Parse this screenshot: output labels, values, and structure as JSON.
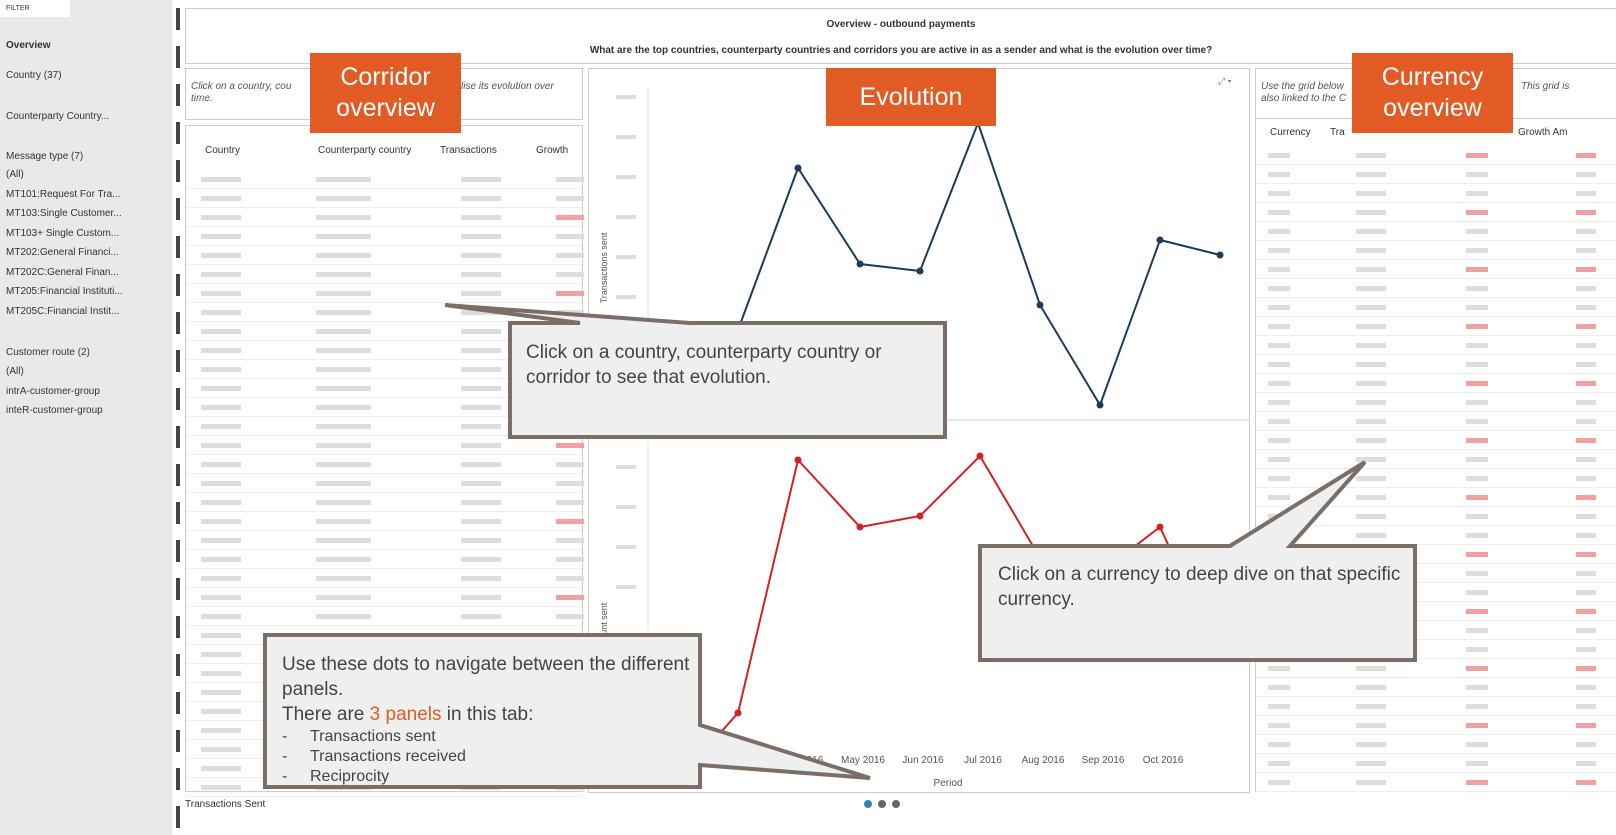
{
  "sidebar": {
    "title": "FILTER",
    "view": "Overview",
    "country": "Country (37)",
    "counterparty": "Counterparty Country...",
    "message_type": {
      "label": "Message type (7)",
      "options": [
        "(All)",
        "MT101:Request For Tra...",
        "MT103:Single Customer...",
        "MT103+ Single Custom...",
        "MT202:General Financi...",
        "MT202C:General Finan...",
        "MT205:Financial Instituti...",
        "MT205C:Financial Instit..."
      ]
    },
    "customer_route": {
      "label": "Customer route (2)",
      "options": [
        "(All)",
        "intrA-customer-group",
        "inteR-customer-group"
      ]
    }
  },
  "header": {
    "title": "Overview - outbound payments",
    "question": "What are the top countries, counterparty countries and corridors you are active in as a sender and what is the evolution over time?"
  },
  "corridor": {
    "note": [
      "Click on a country, cou",
      "lise its evolution over",
      "time."
    ],
    "columns": [
      "Country",
      "Counterparty country",
      "Transactions",
      "Growth"
    ]
  },
  "evolution": {
    "top_axis": "Transactions sent",
    "bottom_axis": "Amount sent",
    "x_labels": [
      "2016",
      "Apr 2016",
      "May 2016",
      "Jun 2016",
      "Jul 2016",
      "Aug 2016",
      "Sep 2016",
      "Oct 2016"
    ],
    "x_title": "Period"
  },
  "currency": {
    "note": [
      "Use the grid below",
      "This grid is",
      "also linked to the C"
    ],
    "columns": [
      "Currency",
      "Tra",
      "Growth Am"
    ]
  },
  "footer": "Transactions Sent",
  "labels": {
    "corridor": [
      "Corridor",
      "overview"
    ],
    "evolution": "Evolution",
    "currency": [
      "Currency",
      "overview"
    ]
  },
  "callouts": {
    "corridor": "Click on a country, counterparty country or corridor to see that evolution.",
    "currency": "Click on a currency to deep dive on that specific currency.",
    "dots": {
      "intro": "Use these dots to navigate between the different panels.",
      "count_before": "There are ",
      "count": "3 panels",
      "count_after": " in this tab:",
      "items": [
        "Transactions sent",
        "Transactions received",
        "Reciprocity"
      ]
    }
  }
}
